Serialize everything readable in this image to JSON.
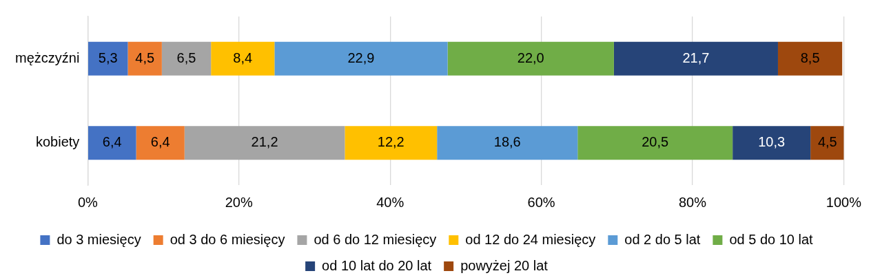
{
  "chart_data": {
    "type": "bar",
    "orientation": "horizontal",
    "stacked": true,
    "categories": [
      "mężczyźni",
      "kobiety"
    ],
    "series": [
      {
        "name": "do 3 miesięcy",
        "color": "#4472c4",
        "values": [
          5.3,
          6.4
        ],
        "value_labels": [
          "5,3",
          "6,4"
        ]
      },
      {
        "name": "od 3 do 6 miesięcy",
        "color": "#ed7d31",
        "values": [
          4.5,
          6.4
        ],
        "value_labels": [
          "4,5",
          "6,4"
        ]
      },
      {
        "name": "od 6 do 12 miesięcy",
        "color": "#a5a5a5",
        "values": [
          6.5,
          21.2
        ],
        "value_labels": [
          "6,5",
          "21,2"
        ]
      },
      {
        "name": "od 12 do 24 miesięcy",
        "color": "#ffc000",
        "values": [
          8.4,
          12.2
        ],
        "value_labels": [
          "8,4",
          "12,2"
        ]
      },
      {
        "name": "od 2 do 5 lat",
        "color": "#5b9bd5",
        "values": [
          22.9,
          18.6
        ],
        "value_labels": [
          "22,9",
          "18,6"
        ]
      },
      {
        "name": "od 5 do 10 lat",
        "color": "#70ad47",
        "values": [
          22.0,
          20.5
        ],
        "value_labels": [
          "22,0",
          "20,5"
        ]
      },
      {
        "name": "od 10 lat do 20 lat",
        "color": "#264478",
        "values": [
          21.7,
          10.3
        ],
        "value_labels": [
          "21,7",
          "10,3"
        ]
      },
      {
        "name": "powyżej 20 lat",
        "color": "#9e480e",
        "values": [
          8.5,
          4.5
        ],
        "value_labels": [
          "8,5",
          "4,5"
        ]
      }
    ],
    "xlim": [
      0,
      100
    ],
    "xticks": [
      {
        "value": 0,
        "label": "0%"
      },
      {
        "value": 20,
        "label": "20%"
      },
      {
        "value": 40,
        "label": "40%"
      },
      {
        "value": 60,
        "label": "60%"
      },
      {
        "value": 80,
        "label": "80%"
      },
      {
        "value": 100,
        "label": "100%"
      }
    ],
    "grid": "x",
    "legend": "bottom"
  }
}
